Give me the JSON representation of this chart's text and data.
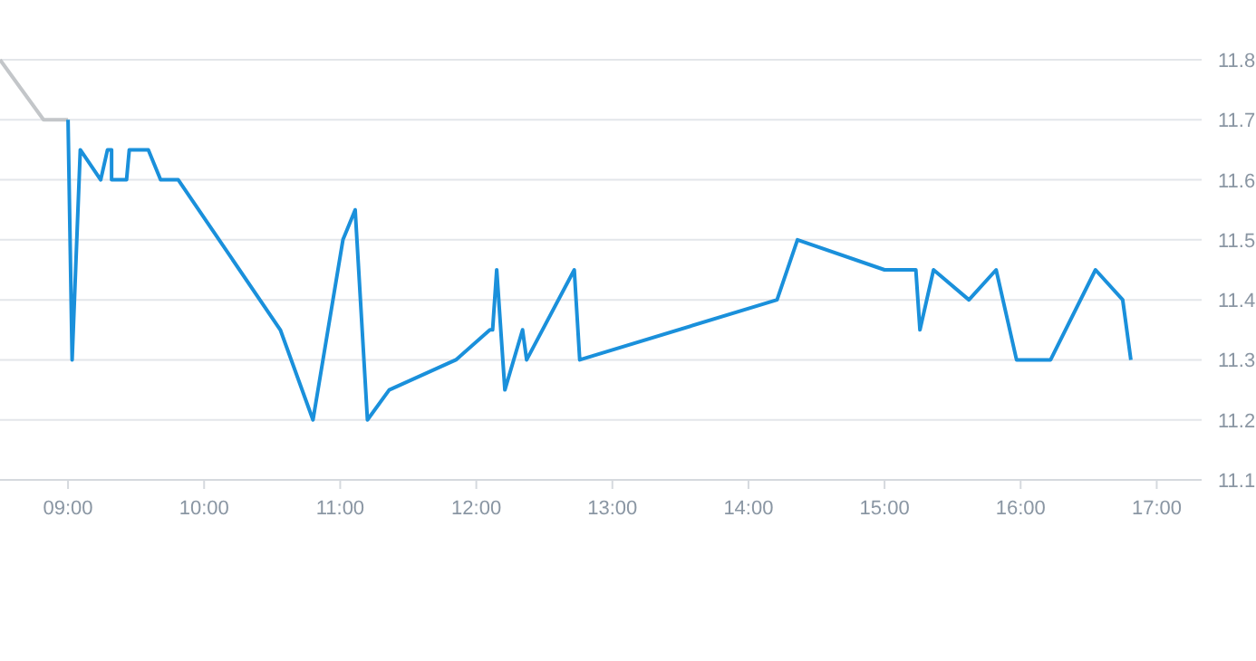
{
  "chart_data": {
    "type": "line",
    "xlim": [
      8.5,
      17.33
    ],
    "ylim": [
      11.1,
      11.8
    ],
    "xticks": [
      {
        "value": 9,
        "label": "09:00"
      },
      {
        "value": 10,
        "label": "10:00"
      },
      {
        "value": 11,
        "label": "11:00"
      },
      {
        "value": 12,
        "label": "12:00"
      },
      {
        "value": 13,
        "label": "13:00"
      },
      {
        "value": 14,
        "label": "14:00"
      },
      {
        "value": 15,
        "label": "15:00"
      },
      {
        "value": 16,
        "label": "16:00"
      },
      {
        "value": 17,
        "label": "17:00"
      }
    ],
    "yticks": [
      11.1,
      11.2,
      11.3,
      11.4,
      11.5,
      11.6,
      11.7,
      11.8
    ],
    "grid": "y",
    "marker": "none",
    "series": [
      {
        "color": "#c3c6c9",
        "x": [
          8.5,
          8.82,
          9.0
        ],
        "values": [
          11.8,
          11.7,
          11.7
        ]
      },
      {
        "color": "#1a90db",
        "x": [
          9.0,
          9.03,
          9.09,
          9.24,
          9.29,
          9.32,
          9.32,
          9.43,
          9.45,
          9.59,
          9.68,
          9.81,
          10.56,
          10.8,
          11.02,
          11.11,
          11.2,
          11.36,
          11.85,
          12.1,
          12.12,
          12.15,
          12.21,
          12.34,
          12.37,
          12.72,
          12.76,
          14.21,
          14.36,
          15.0,
          15.23,
          15.26,
          15.36,
          15.62,
          15.82,
          15.97,
          16.22,
          16.55,
          16.75,
          16.81
        ],
        "values": [
          11.7,
          11.3,
          11.65,
          11.6,
          11.65,
          11.65,
          11.6,
          11.6,
          11.65,
          11.65,
          11.6,
          11.6,
          11.35,
          11.2,
          11.5,
          11.55,
          11.2,
          11.25,
          11.3,
          11.35,
          11.35,
          11.45,
          11.25,
          11.35,
          11.3,
          11.45,
          11.3,
          11.4,
          11.5,
          11.45,
          11.45,
          11.35,
          11.45,
          11.4,
          11.45,
          11.3,
          11.3,
          11.45,
          11.4,
          11.3
        ]
      }
    ]
  }
}
